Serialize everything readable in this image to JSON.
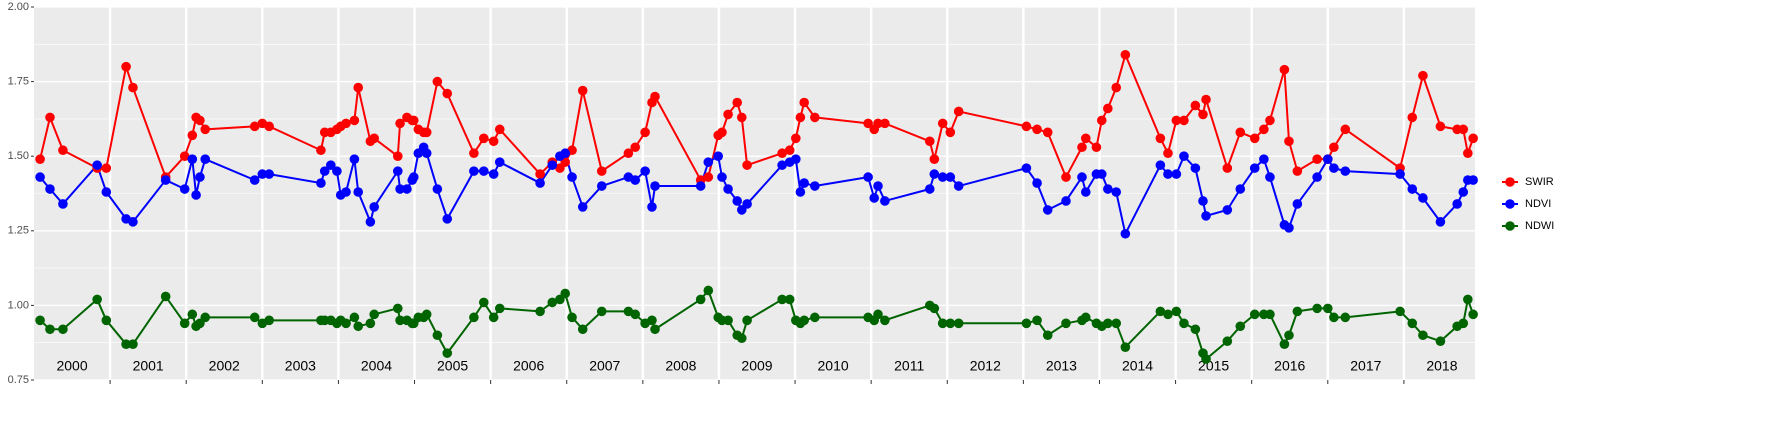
{
  "chart_data": {
    "type": "line",
    "xlim": [
      2000,
      2019
    ],
    "ylim": [
      0.75,
      2.0
    ],
    "yticks": [
      0.75,
      {
        "value": 1,
        "label": "1.00"
      },
      1.25,
      {
        "value": 1.5,
        "label": "1.50"
      },
      1.75,
      {
        "value": 2,
        "label": "2.00"
      }
    ],
    "xticks": [
      {
        "value": 2000.5,
        "label": "2000"
      },
      {
        "value": 2001.5,
        "label": "2001"
      },
      {
        "value": 2002.5,
        "label": "2002"
      },
      {
        "value": 2003.5,
        "label": "2003"
      },
      {
        "value": 2004.5,
        "label": "2004"
      },
      {
        "value": 2005.5,
        "label": "2005"
      },
      {
        "value": 2006.5,
        "label": "2006"
      },
      {
        "value": 2007.5,
        "label": "2007"
      },
      {
        "value": 2008.5,
        "label": "2008"
      },
      {
        "value": 2009.5,
        "label": "2009"
      },
      {
        "value": 2010.5,
        "label": "2010"
      },
      {
        "value": 2011.5,
        "label": "2011"
      },
      {
        "value": 2012.5,
        "label": "2012"
      },
      {
        "value": 2013.5,
        "label": "2013"
      },
      {
        "value": 2014.5,
        "label": "2014"
      },
      {
        "value": 2015.5,
        "label": "2015"
      },
      {
        "value": 2016.5,
        "label": "2016"
      },
      {
        "value": 2017.5,
        "label": "2017"
      },
      {
        "value": 2018.5,
        "label": "2018"
      }
    ],
    "xgrid": [
      2001,
      2002,
      2003,
      2004,
      2005,
      2006,
      2007,
      2008,
      2009,
      2010,
      2011,
      2012,
      2013,
      2014,
      2015,
      2016,
      2017,
      2018
    ],
    "grid": true,
    "legend": "right",
    "x": [
      2000.08,
      2000.21,
      2000.38,
      2000.83,
      2000.95,
      2001.21,
      2001.3,
      2001.73,
      2001.98,
      2002.08,
      2002.13,
      2002.18,
      2002.25,
      2002.9,
      2003.0,
      2003.09,
      2003.77,
      2003.82,
      2003.9,
      2003.98,
      2004.03,
      2004.1,
      2004.21,
      2004.26,
      2004.42,
      2004.47,
      2004.78,
      2004.81,
      2004.9,
      2004.97,
      2004.99,
      2005.05,
      2005.12,
      2005.16,
      2005.3,
      2005.43,
      2005.78,
      2005.91,
      2006.04,
      2006.12,
      2006.65,
      2006.81,
      2006.91,
      2006.98,
      2007.07,
      2007.21,
      2007.46,
      2007.81,
      2007.9,
      2008.03,
      2008.12,
      2008.16,
      2008.76,
      2008.86,
      2008.99,
      2009.04,
      2009.12,
      2009.24,
      2009.3,
      2009.37,
      2009.83,
      2009.93,
      2010.01,
      2010.07,
      2010.12,
      2010.26,
      2010.96,
      2011.04,
      2011.09,
      2011.18,
      2011.77,
      2011.83,
      2011.94,
      2012.04,
      2012.15,
      2013.04,
      2013.18,
      2013.32,
      2013.56,
      2013.77,
      2013.82,
      2013.96,
      2014.03,
      2014.11,
      2014.22,
      2014.34,
      2014.8,
      2014.9,
      2015.01,
      2015.11,
      2015.26,
      2015.36,
      2015.4,
      2015.68,
      2015.85,
      2016.04,
      2016.16,
      2016.24,
      2016.43,
      2016.49,
      2016.6,
      2016.86,
      2017.0,
      2017.08,
      2017.23,
      2017.95,
      2018.11,
      2018.25,
      2018.48,
      2018.7,
      2018.78,
      2018.84,
      2018.91
    ],
    "series": [
      {
        "name": "SWIR",
        "color": "#ff0000",
        "values": [
          1.49,
          1.63,
          1.52,
          1.46,
          1.46,
          1.8,
          1.73,
          1.43,
          1.5,
          1.57,
          1.63,
          1.62,
          1.59,
          1.6,
          1.61,
          1.6,
          1.52,
          1.58,
          1.58,
          1.59,
          1.6,
          1.61,
          1.62,
          1.73,
          1.55,
          1.56,
          1.5,
          1.61,
          1.63,
          1.62,
          1.62,
          1.59,
          1.58,
          1.58,
          1.75,
          1.71,
          1.51,
          1.56,
          1.55,
          1.59,
          1.44,
          1.48,
          1.46,
          1.48,
          1.52,
          1.72,
          1.45,
          1.51,
          1.53,
          1.58,
          1.68,
          1.7,
          1.42,
          1.43,
          1.57,
          1.58,
          1.64,
          1.68,
          1.63,
          1.47,
          1.51,
          1.52,
          1.56,
          1.63,
          1.68,
          1.63,
          1.61,
          1.59,
          1.61,
          1.61,
          1.55,
          1.49,
          1.61,
          1.58,
          1.65,
          1.6,
          1.59,
          1.58,
          1.43,
          1.53,
          1.56,
          1.53,
          1.62,
          1.66,
          1.73,
          1.84,
          1.56,
          1.51,
          1.62,
          1.62,
          1.67,
          1.64,
          1.69,
          1.46,
          1.58,
          1.56,
          1.59,
          1.62,
          1.79,
          1.55,
          1.45,
          1.49,
          1.49,
          1.53,
          1.59,
          1.46,
          1.63,
          1.77,
          1.6,
          1.59,
          1.59,
          1.51,
          1.56
        ]
      },
      {
        "name": "NDVI",
        "color": "#0000ff",
        "values": [
          1.43,
          1.39,
          1.34,
          1.47,
          1.38,
          1.29,
          1.28,
          1.42,
          1.39,
          1.49,
          1.37,
          1.43,
          1.49,
          1.42,
          1.44,
          1.44,
          1.41,
          1.45,
          1.47,
          1.45,
          1.37,
          1.38,
          1.49,
          1.38,
          1.28,
          1.33,
          1.45,
          1.39,
          1.39,
          1.42,
          1.43,
          1.51,
          1.53,
          1.51,
          1.39,
          1.29,
          1.45,
          1.45,
          1.44,
          1.48,
          1.41,
          1.47,
          1.5,
          1.51,
          1.43,
          1.33,
          1.4,
          1.43,
          1.42,
          1.45,
          1.33,
          1.4,
          1.4,
          1.48,
          1.5,
          1.43,
          1.39,
          1.35,
          1.32,
          1.34,
          1.47,
          1.48,
          1.49,
          1.38,
          1.41,
          1.4,
          1.43,
          1.36,
          1.4,
          1.35,
          1.39,
          1.44,
          1.43,
          1.43,
          1.4,
          1.46,
          1.41,
          1.32,
          1.35,
          1.43,
          1.38,
          1.44,
          1.44,
          1.39,
          1.38,
          1.24,
          1.47,
          1.44,
          1.44,
          1.5,
          1.46,
          1.35,
          1.3,
          1.32,
          1.39,
          1.46,
          1.49,
          1.43,
          1.27,
          1.26,
          1.34,
          1.43,
          1.49,
          1.46,
          1.45,
          1.44,
          1.39,
          1.36,
          1.28,
          1.34,
          1.38,
          1.42,
          1.42
        ]
      },
      {
        "name": "NDWI",
        "color": "#006400",
        "values": [
          0.95,
          0.92,
          0.92,
          1.02,
          0.95,
          0.87,
          0.87,
          1.03,
          0.94,
          0.97,
          0.93,
          0.94,
          0.96,
          0.96,
          0.94,
          0.95,
          0.95,
          0.95,
          0.95,
          0.94,
          0.95,
          0.94,
          0.96,
          0.93,
          0.94,
          0.97,
          0.99,
          0.95,
          0.95,
          0.94,
          0.94,
          0.96,
          0.96,
          0.97,
          0.9,
          0.84,
          0.96,
          1.01,
          0.96,
          0.99,
          0.98,
          1.01,
          1.02,
          1.04,
          0.96,
          0.92,
          0.98,
          0.98,
          0.97,
          0.94,
          0.95,
          0.92,
          1.02,
          1.05,
          0.96,
          0.95,
          0.95,
          0.9,
          0.89,
          0.95,
          1.02,
          1.02,
          0.95,
          0.94,
          0.95,
          0.96,
          0.96,
          0.95,
          0.97,
          0.95,
          1.0,
          0.99,
          0.94,
          0.94,
          0.94,
          0.94,
          0.95,
          0.9,
          0.94,
          0.95,
          0.96,
          0.94,
          0.93,
          0.94,
          0.94,
          0.86,
          0.98,
          0.97,
          0.98,
          0.94,
          0.92,
          0.84,
          0.82,
          0.88,
          0.93,
          0.97,
          0.97,
          0.97,
          0.87,
          0.9,
          0.98,
          0.99,
          0.99,
          0.96,
          0.96,
          0.98,
          0.94,
          0.9,
          0.88,
          0.93,
          0.94,
          1.02,
          0.97
        ]
      }
    ]
  }
}
